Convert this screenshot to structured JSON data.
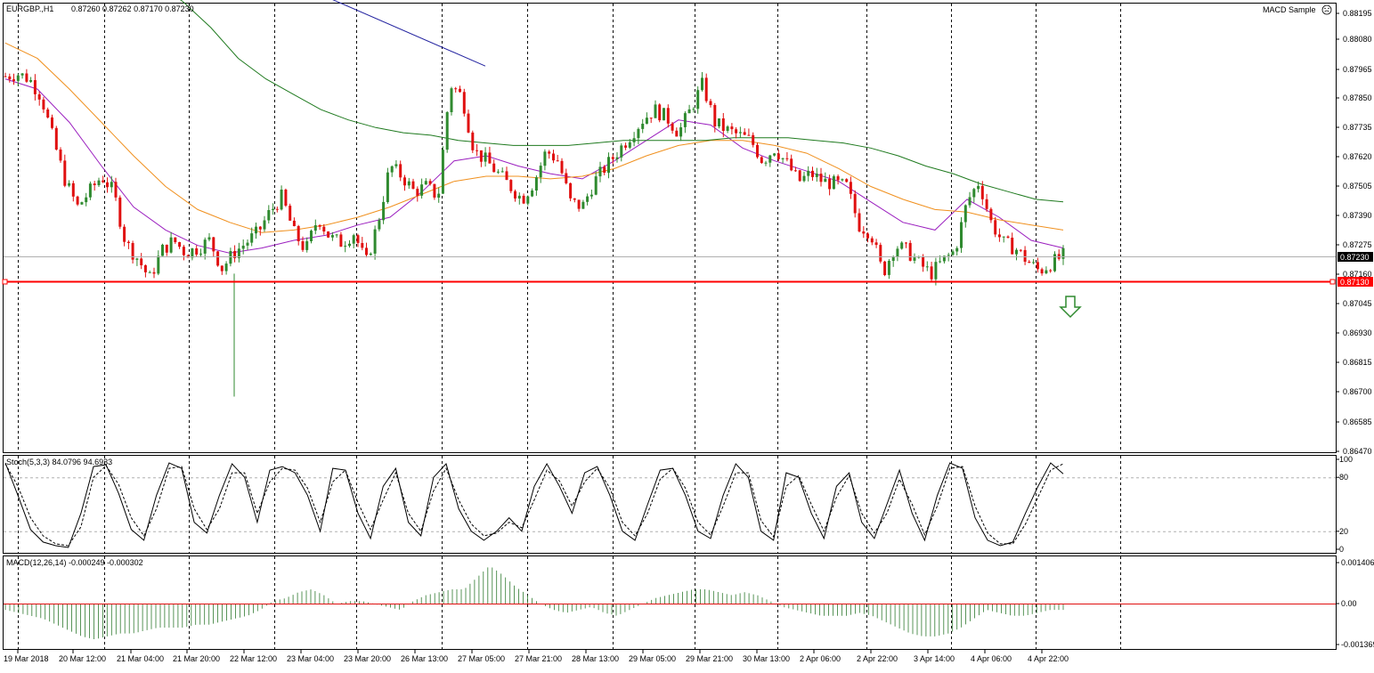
{
  "header": {
    "symbol": "EURGBP.,H1",
    "ohlc": "0.87260 0.87262 0.87170 0.87230",
    "indicator_name": "MACD Sample",
    "indicator_icon": "smiley-icon"
  },
  "stoch_label": "Stoch(5,3,3) 84.0796 94.6933",
  "macd_label": "MACD(12,26,14) -0.000249 -0.000302",
  "price_tags": {
    "current": "0.87230",
    "support": "0.87130"
  },
  "colors": {
    "bull": "#2f8a2f",
    "bear": "#e01010",
    "support": "#ff0000",
    "ma_fast": "#9b1fbf",
    "ma_mid": "#f0901e",
    "ma_slow": "#1f7a1f",
    "trendline": "#2323a0",
    "arrow": "#2f8a2f"
  },
  "chart_data": [
    {
      "type": "candlestick",
      "title": "",
      "price_axis_ticks": [
        "0.88195",
        "0.88080",
        "0.87965",
        "0.87850",
        "0.87735",
        "0.87620",
        "0.87505",
        "0.87390",
        "0.87275",
        "0.87160",
        "0.87045",
        "0.86930",
        "0.86815",
        "0.86700",
        "0.86585",
        "0.86470"
      ],
      "ylim": [
        0.8647,
        0.882
      ],
      "time_axis_ticks": [
        "19 Mar 2018",
        "20 Mar 12:00",
        "21 Mar 04:00",
        "21 Mar 20:00",
        "22 Mar 12:00",
        "23 Mar 04:00",
        "23 Mar 20:00",
        "26 Mar 13:00",
        "27 Mar 05:00",
        "27 Mar 21:00",
        "28 Mar 13:00",
        "29 Mar 05:00",
        "29 Mar 21:00",
        "30 Mar 13:00",
        "2 Apr 06:00",
        "2 Apr 22:00",
        "3 Apr 14:00",
        "4 Apr 06:00",
        "4 Apr 22:00"
      ],
      "close_path": [
        0.8793,
        0.8794,
        0.8792,
        0.8785,
        0.8768,
        0.8752,
        0.8742,
        0.8748,
        0.8754,
        0.8748,
        0.8728,
        0.8722,
        0.8714,
        0.8725,
        0.8729,
        0.8724,
        0.8726,
        0.8729,
        0.8718,
        0.8724,
        0.8728,
        0.8732,
        0.874,
        0.8746,
        0.8732,
        0.8725,
        0.8738,
        0.873,
        0.8728,
        0.8732,
        0.872,
        0.8736,
        0.8758,
        0.8754,
        0.8748,
        0.875,
        0.8746,
        0.879,
        0.8785,
        0.8764,
        0.876,
        0.8755,
        0.875,
        0.8745,
        0.8752,
        0.8764,
        0.876,
        0.8744,
        0.8742,
        0.8752,
        0.8758,
        0.8764,
        0.877,
        0.8776,
        0.878,
        0.8777,
        0.8771,
        0.878,
        0.879,
        0.8775,
        0.8772,
        0.877,
        0.8768,
        0.876,
        0.8765,
        0.8759,
        0.8752,
        0.8755,
        0.8752,
        0.8751,
        0.875,
        0.8735,
        0.8732,
        0.8716,
        0.8727,
        0.8725,
        0.872,
        0.8716,
        0.8721,
        0.8725,
        0.8744,
        0.8752,
        0.8736,
        0.8728,
        0.8726,
        0.8721,
        0.8717,
        0.872,
        0.8723
      ],
      "trendline": {
        "from": 0.8828,
        "to": 0.8797
      },
      "moving_averages": [
        {
          "period": "fast",
          "points": [
            0.8792,
            0.8788,
            0.8775,
            0.8758,
            0.8742,
            0.8733,
            0.8727,
            0.8724,
            0.8726,
            0.8729,
            0.8731,
            0.8735,
            0.8738,
            0.8748,
            0.876,
            0.8762,
            0.8758,
            0.8755,
            0.8753,
            0.876,
            0.8768,
            0.8776,
            0.8774,
            0.8765,
            0.876,
            0.8756,
            0.8752,
            0.8744,
            0.8736,
            0.8733,
            0.8745,
            0.8738,
            0.8729,
            0.8726
          ]
        },
        {
          "period": "mid",
          "points": [
            0.8806,
            0.88,
            0.8788,
            0.8775,
            0.8762,
            0.875,
            0.8741,
            0.8736,
            0.8732,
            0.8733,
            0.8735,
            0.8738,
            0.8742,
            0.8747,
            0.8752,
            0.8754,
            0.8754,
            0.8753,
            0.8754,
            0.8757,
            0.8762,
            0.8766,
            0.8768,
            0.8768,
            0.8766,
            0.8763,
            0.8757,
            0.875,
            0.8745,
            0.8741,
            0.874,
            0.8737,
            0.8735,
            0.8733
          ]
        },
        {
          "period": "slow",
          "points": [
            0.883,
            0.8822,
            0.8812,
            0.88,
            0.8792,
            0.8786,
            0.878,
            0.8776,
            0.8773,
            0.8771,
            0.877,
            0.8768,
            0.8767,
            0.8766,
            0.8766,
            0.8766,
            0.8767,
            0.8768,
            0.8768,
            0.8768,
            0.8768,
            0.8769,
            0.8769,
            0.8769,
            0.8768,
            0.8767,
            0.8765,
            0.8762,
            0.8758,
            0.8755,
            0.8751,
            0.8748,
            0.8745,
            0.8744
          ]
        }
      ]
    },
    {
      "type": "line",
      "title": "",
      "name": "Stochastic",
      "ylim": [
        0,
        100
      ],
      "y_ticks": [
        "100",
        "80",
        "20",
        "0"
      ],
      "levels": [
        80,
        20
      ],
      "main": [
        96,
        60,
        22,
        8,
        4,
        2,
        40,
        92,
        94,
        62,
        22,
        10,
        60,
        96,
        90,
        30,
        18,
        60,
        95,
        80,
        30,
        88,
        92,
        85,
        60,
        20,
        90,
        88,
        40,
        12,
        70,
        90,
        30,
        15,
        80,
        95,
        45,
        20,
        10,
        20,
        35,
        20,
        70,
        95,
        70,
        40,
        85,
        92,
        60,
        20,
        10,
        50,
        88,
        90,
        60,
        20,
        12,
        60,
        95,
        80,
        20,
        10,
        85,
        80,
        40,
        12,
        70,
        85,
        30,
        12,
        50,
        88,
        40,
        10,
        60,
        96,
        90,
        35,
        10,
        4,
        8,
        40,
        70,
        96,
        84
      ],
      "signal": [
        95,
        70,
        35,
        15,
        6,
        4,
        25,
        80,
        93,
        72,
        35,
        15,
        45,
        90,
        92,
        45,
        22,
        45,
        85,
        85,
        40,
        75,
        90,
        88,
        68,
        30,
        75,
        88,
        52,
        22,
        55,
        85,
        40,
        20,
        65,
        90,
        55,
        28,
        15,
        18,
        30,
        24,
        55,
        88,
        76,
        48,
        75,
        90,
        68,
        30,
        15,
        40,
        78,
        90,
        68,
        30,
        16,
        48,
        85,
        85,
        32,
        14,
        70,
        82,
        50,
        20,
        58,
        82,
        40,
        18,
        40,
        78,
        50,
        16,
        48,
        90,
        92,
        48,
        18,
        6,
        6,
        28,
        58,
        88,
        95
      ]
    },
    {
      "type": "bar",
      "title": "",
      "name": "MACD",
      "y_ticks": [
        "0.001406",
        "0.00",
        "-0.001369"
      ],
      "ylim": [
        -0.001369,
        0.001406
      ],
      "histogram": [
        -0.0002,
        -0.0003,
        -0.0004,
        -0.0005,
        -0.0007,
        -0.0009,
        -0.0011,
        -0.0012,
        -0.0011,
        -0.001,
        -0.001,
        -0.0009,
        -0.0008,
        -0.0008,
        -0.0008,
        -0.0007,
        -0.0007,
        -0.0006,
        -0.0005,
        -0.0004,
        -0.0002,
        0.0001,
        0.0002,
        0.0004,
        0.0005,
        0.0003,
        0.0,
        0.0001,
        0.0001,
        0.0,
        -0.0001,
        -0.0002,
        0.0001,
        0.0003,
        0.0004,
        0.0005,
        0.0005,
        0.0009,
        0.0013,
        0.001,
        0.0006,
        0.0003,
        0.0,
        -0.0002,
        -0.0003,
        -0.0002,
        -0.0001,
        -0.0003,
        -0.0004,
        -0.0002,
        0.0,
        0.0002,
        0.0003,
        0.0004,
        0.0005,
        0.0005,
        0.0004,
        0.0003,
        0.0004,
        0.0003,
        0.0001,
        -0.0001,
        -0.0002,
        -0.0003,
        -0.0004,
        -0.0004,
        -0.0004,
        -0.0003,
        -0.0004,
        -0.0006,
        -0.0008,
        -0.001,
        -0.0011,
        -0.0011,
        -0.001,
        -0.0008,
        -0.0005,
        -0.0002,
        -0.0003,
        -0.0004,
        -0.0004,
        -0.0003,
        -0.0002,
        -0.0002
      ],
      "signal_level": 0.0
    }
  ]
}
